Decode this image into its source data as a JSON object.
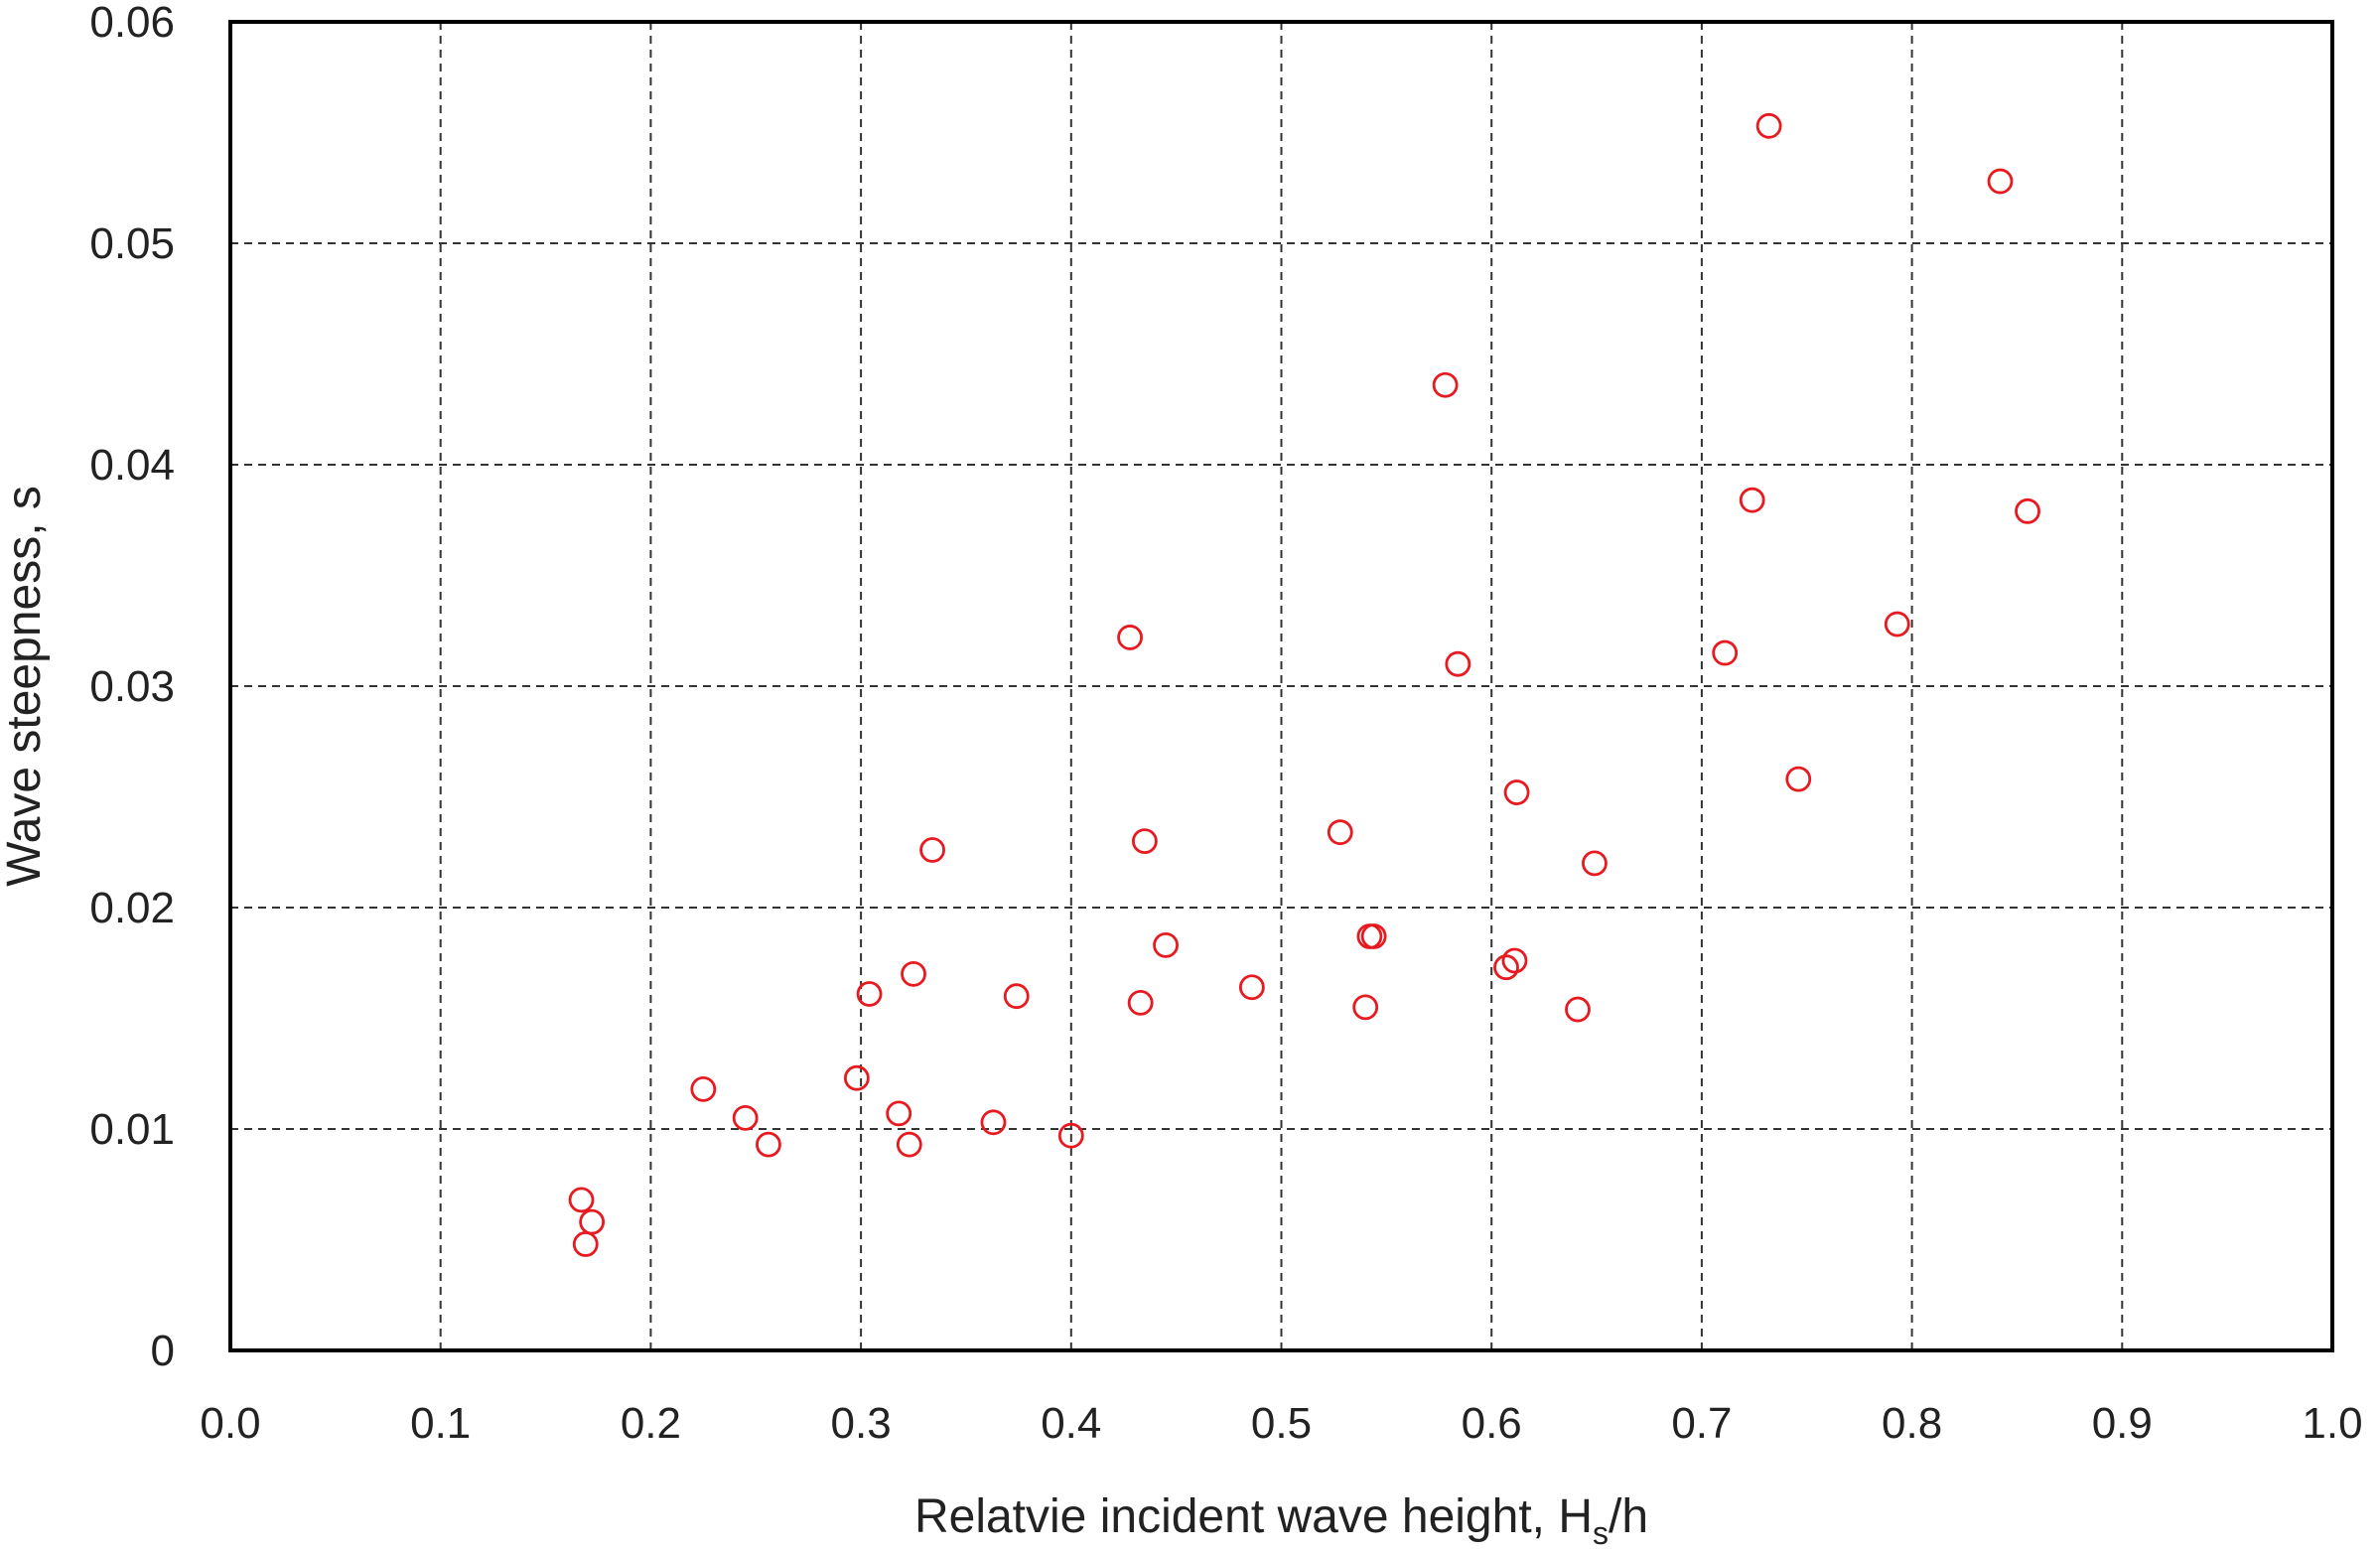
{
  "chart_data": {
    "type": "scatter",
    "xlabel_main": "Relatvie incident wave height, H",
    "xlabel_sub": "s",
    "xlabel_tail": "/h",
    "ylabel": "Wave steepness, s",
    "xlim": [
      0.0,
      1.0
    ],
    "ylim": [
      0,
      0.06
    ],
    "x_ticks": [
      "0.0",
      "0.1",
      "0.2",
      "0.3",
      "0.4",
      "0.5",
      "0.6",
      "0.7",
      "0.8",
      "0.9",
      "1.0"
    ],
    "x_tick_values": [
      0.0,
      0.1,
      0.2,
      0.3,
      0.4,
      0.5,
      0.6,
      0.7,
      0.8,
      0.9,
      1.0
    ],
    "y_ticks": [
      "0",
      "0.01",
      "0.02",
      "0.03",
      "0.04",
      "0.05",
      "0.06"
    ],
    "y_tick_values": [
      0,
      0.01,
      0.02,
      0.03,
      0.04,
      0.05,
      0.06
    ],
    "grid": true,
    "marker": "open-circle",
    "marker_color": "#e8191f",
    "points": [
      {
        "x": 0.167,
        "y": 0.0068
      },
      {
        "x": 0.172,
        "y": 0.0058
      },
      {
        "x": 0.169,
        "y": 0.0048
      },
      {
        "x": 0.225,
        "y": 0.0118
      },
      {
        "x": 0.245,
        "y": 0.0105
      },
      {
        "x": 0.256,
        "y": 0.0093
      },
      {
        "x": 0.298,
        "y": 0.0123
      },
      {
        "x": 0.304,
        "y": 0.0161
      },
      {
        "x": 0.318,
        "y": 0.0107
      },
      {
        "x": 0.323,
        "y": 0.0093
      },
      {
        "x": 0.325,
        "y": 0.017
      },
      {
        "x": 0.334,
        "y": 0.0226
      },
      {
        "x": 0.363,
        "y": 0.0103
      },
      {
        "x": 0.374,
        "y": 0.016
      },
      {
        "x": 0.4,
        "y": 0.0097
      },
      {
        "x": 0.428,
        "y": 0.0322
      },
      {
        "x": 0.433,
        "y": 0.0157
      },
      {
        "x": 0.435,
        "y": 0.023
      },
      {
        "x": 0.445,
        "y": 0.0183
      },
      {
        "x": 0.486,
        "y": 0.0164
      },
      {
        "x": 0.528,
        "y": 0.0234
      },
      {
        "x": 0.54,
        "y": 0.0155
      },
      {
        "x": 0.542,
        "y": 0.0187
      },
      {
        "x": 0.544,
        "y": 0.0187
      },
      {
        "x": 0.578,
        "y": 0.0436
      },
      {
        "x": 0.584,
        "y": 0.031
      },
      {
        "x": 0.607,
        "y": 0.0173
      },
      {
        "x": 0.611,
        "y": 0.0176
      },
      {
        "x": 0.612,
        "y": 0.0252
      },
      {
        "x": 0.641,
        "y": 0.0154
      },
      {
        "x": 0.649,
        "y": 0.022
      },
      {
        "x": 0.711,
        "y": 0.0315
      },
      {
        "x": 0.724,
        "y": 0.0384
      },
      {
        "x": 0.732,
        "y": 0.0553
      },
      {
        "x": 0.746,
        "y": 0.0258
      },
      {
        "x": 0.793,
        "y": 0.0328
      },
      {
        "x": 0.842,
        "y": 0.0528
      },
      {
        "x": 0.855,
        "y": 0.0379
      }
    ]
  }
}
